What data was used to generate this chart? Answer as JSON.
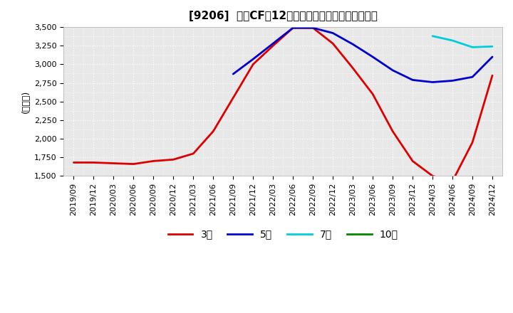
{
  "title": "[9206]  営業CFの12か月移動合計の標準偏差の推移",
  "ylabel": "(百万円)",
  "ylim": [
    1500,
    3500
  ],
  "yticks": [
    1500,
    1750,
    2000,
    2250,
    2500,
    2750,
    3000,
    3250,
    3500
  ],
  "bg_color": "#e8e8e8",
  "grid_color": "#ffffff",
  "legend_labels": [
    "3年",
    "5年",
    "7年",
    "10年"
  ],
  "legend_colors": [
    "#dd0000",
    "#0000cc",
    "#00ccdd",
    "#008800"
  ],
  "x_labels": [
    "2019/09",
    "2019/12",
    "2020/03",
    "2020/06",
    "2020/09",
    "2020/12",
    "2021/03",
    "2021/06",
    "2021/09",
    "2021/12",
    "2022/03",
    "2022/06",
    "2022/09",
    "2022/12",
    "2023/03",
    "2023/06",
    "2023/09",
    "2023/12",
    "2024/03",
    "2024/06",
    "2024/09",
    "2024/12"
  ],
  "series_3y": [
    1680,
    1680,
    1670,
    1660,
    1700,
    1720,
    1800,
    2100,
    2550,
    3000,
    3250,
    3490,
    3490,
    3280,
    2950,
    2600,
    2100,
    1700,
    1500,
    1430,
    1950,
    2850
  ],
  "series_5y": [
    null,
    null,
    null,
    null,
    null,
    null,
    null,
    null,
    2870,
    3070,
    3280,
    3490,
    3490,
    3420,
    3270,
    3100,
    2920,
    2790,
    2760,
    2780,
    2830,
    3100
  ],
  "series_7y": [
    null,
    null,
    null,
    null,
    null,
    null,
    null,
    null,
    null,
    null,
    null,
    null,
    null,
    null,
    null,
    null,
    null,
    null,
    3380,
    3320,
    3230,
    3240
  ],
  "series_10y": [
    null,
    null,
    null,
    null,
    null,
    null,
    null,
    null,
    null,
    null,
    null,
    null,
    null,
    null,
    null,
    null,
    null,
    null,
    null,
    null,
    null,
    null
  ]
}
